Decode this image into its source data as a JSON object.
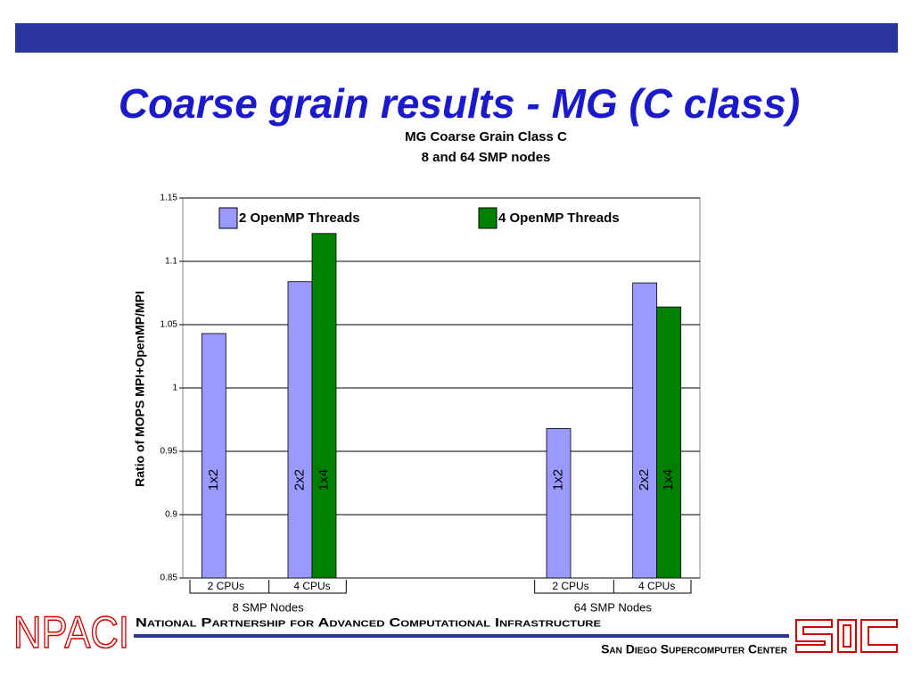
{
  "slide": {
    "title": "Coarse grain results - MG (C class)",
    "logo": "NPACI",
    "footer_top": "National Partnership for Advanced Computational Infrastructure",
    "footer_bottom": "San Diego Supercomputer Center"
  },
  "chart_data": {
    "type": "bar",
    "title": "MG Coarse Grain Class C",
    "subtitle": "8 and 64 SMP nodes",
    "y_label": "Ratio of MOPS MPI+OpenMP/MPI",
    "categories": [
      "2 CPUs",
      "4 CPUs",
      null,
      null,
      "2 CPUs",
      "4 CPUs"
    ],
    "groups": [
      "8 SMP Nodes",
      "64 SMP Nodes"
    ],
    "series": [
      {
        "name": "2 OpenMP Threads",
        "color": "#9999ff",
        "values": [
          1.043,
          1.084,
          null,
          null,
          0.968,
          1.083
        ],
        "bar_labels": [
          "1x2",
          "2x2",
          null,
          null,
          "1x2",
          "2x2"
        ]
      },
      {
        "name": "4 OpenMP Threads",
        "color": "#008000",
        "values": [
          null,
          1.122,
          null,
          null,
          null,
          1.064
        ],
        "bar_labels": [
          null,
          "1x4",
          null,
          null,
          null,
          "1x4"
        ]
      }
    ],
    "ylim": [
      0.85,
      1.15
    ],
    "yticks": [
      0.85,
      0.9,
      0.95,
      1,
      1.05,
      1.1,
      1.15
    ],
    "grid": true,
    "legend": "top"
  }
}
